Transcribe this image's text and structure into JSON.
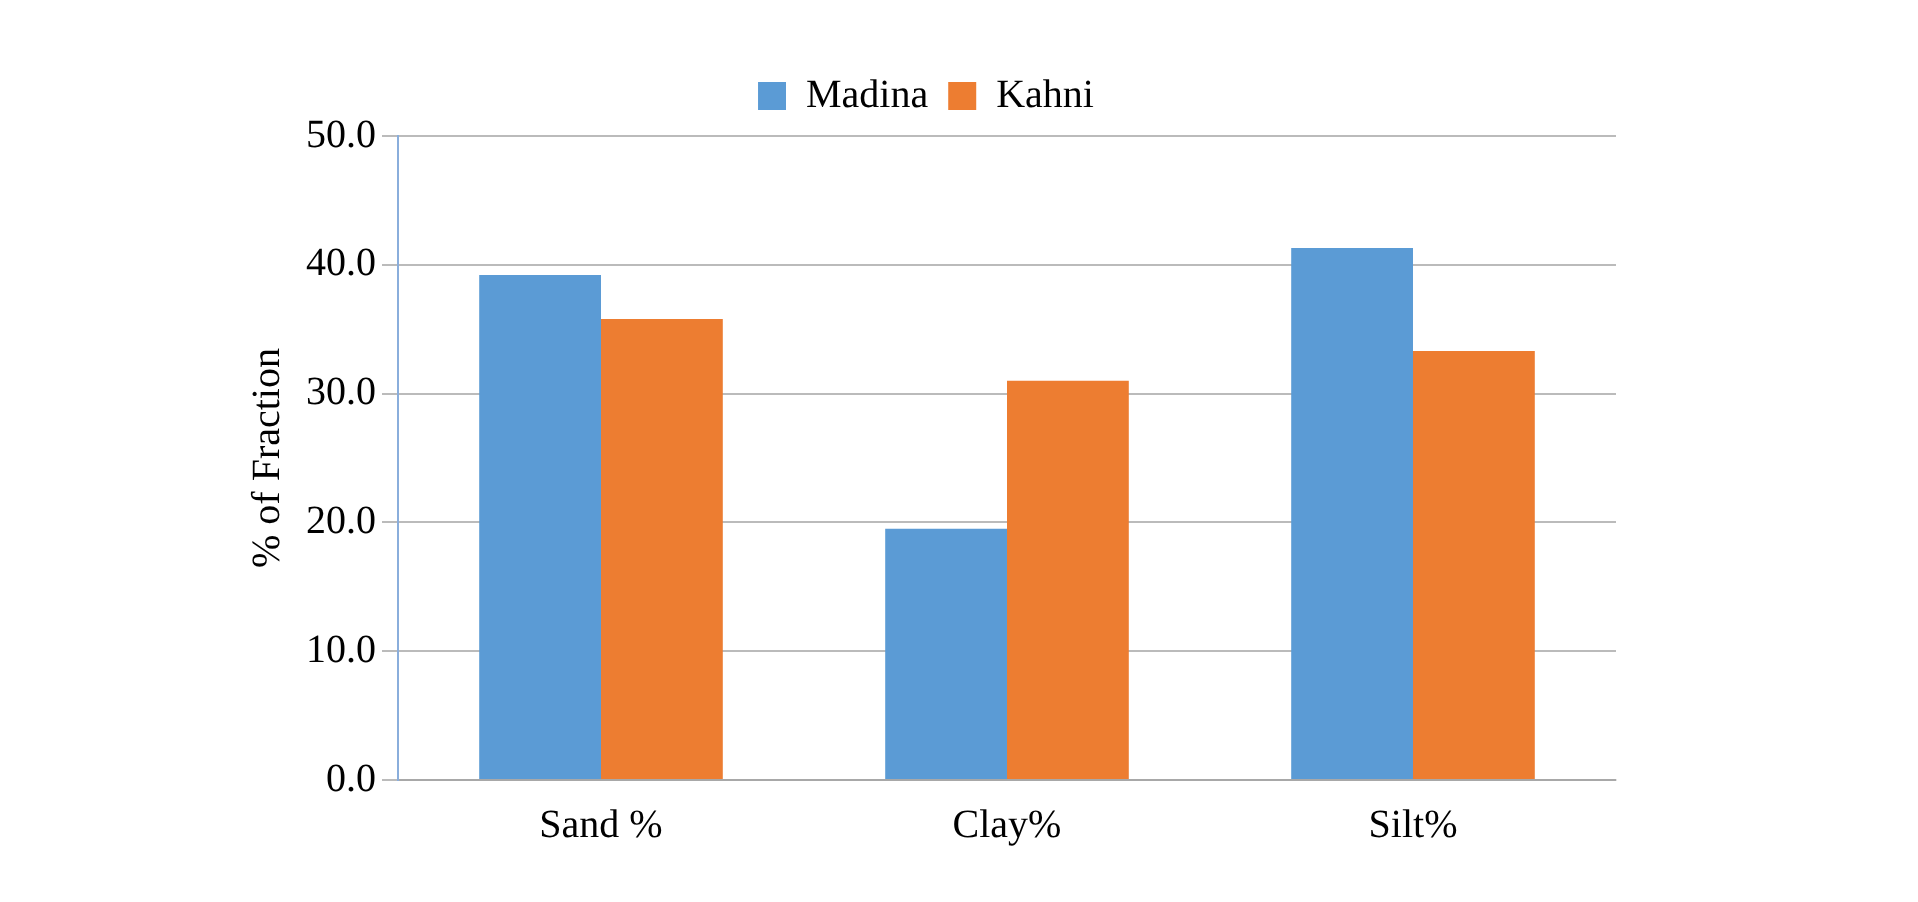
{
  "chart_data": {
    "type": "bar",
    "ylabel": "% of Fraction",
    "categories": [
      "Sand %",
      "Clay%",
      "Silt%"
    ],
    "series": [
      {
        "name": "Madina",
        "color": "#5b9bd5",
        "values": [
          39.2,
          19.5,
          41.3
        ]
      },
      {
        "name": "Kahni",
        "color": "#ed7d31",
        "values": [
          35.8,
          31.0,
          33.3
        ]
      }
    ],
    "ylim": [
      0,
      50
    ],
    "yticks": [
      {
        "value": 0,
        "label": "0.0"
      },
      {
        "value": 10,
        "label": "10.0"
      },
      {
        "value": 20,
        "label": "20.0"
      },
      {
        "value": 30,
        "label": "30.0"
      },
      {
        "value": 40,
        "label": "40.0"
      },
      {
        "value": 50,
        "label": "50.0"
      }
    ],
    "grid": "y",
    "legend": "top"
  }
}
